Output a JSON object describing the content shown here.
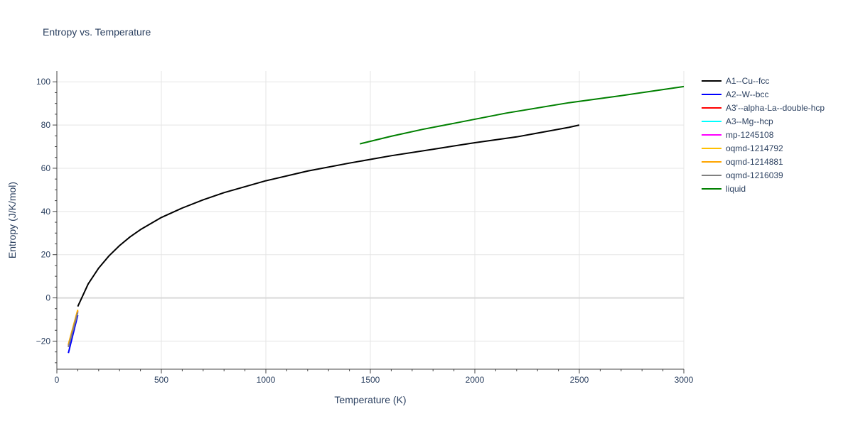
{
  "chart_data": {
    "type": "line",
    "title": "Entropy vs. Temperature",
    "xlabel": "Temperature (K)",
    "ylabel": "Entropy (J/K/mol)",
    "xlim": [
      0,
      3000
    ],
    "ylim": [
      -33,
      105
    ],
    "x_ticks": [
      0,
      500,
      1000,
      1500,
      2000,
      2500,
      3000
    ],
    "y_ticks": [
      -20,
      0,
      20,
      40,
      60,
      80,
      100
    ],
    "x_tick_labels": [
      "0",
      "500",
      "1000",
      "1500",
      "2000",
      "2500",
      "3000"
    ],
    "y_tick_labels": [
      "−20",
      "0",
      "20",
      "40",
      "60",
      "80",
      "100"
    ],
    "grid": true,
    "legend_position": "right",
    "series": [
      {
        "name": "A1--Cu--fcc",
        "color": "#000000",
        "x": [
          100,
          150,
          200,
          250,
          300,
          350,
          400,
          500,
          600,
          700,
          800,
          1000,
          1200,
          1400,
          1600,
          1800,
          2000,
          2200,
          2450,
          2500
        ],
        "y": [
          -4,
          6.5,
          13.8,
          19.5,
          24.2,
          28.2,
          31.6,
          37.2,
          41.6,
          45.4,
          48.7,
          54.2,
          58.7,
          62.4,
          65.8,
          68.8,
          71.8,
          74.5,
          78.9,
          80
        ]
      },
      {
        "name": "A2--W--bcc",
        "color": "#0000ff",
        "x": [
          55,
          100
        ],
        "y": [
          -25.5,
          -8
        ]
      },
      {
        "name": "A3'--alpha-La--double-hcp",
        "color": "#ff0000",
        "x": [
          55,
          100
        ],
        "y": [
          -22,
          -6
        ]
      },
      {
        "name": "A3--Mg--hcp",
        "color": "#00ffff",
        "x": [
          55,
          100
        ],
        "y": [
          -22.3,
          -6.2
        ]
      },
      {
        "name": "mp-1245108",
        "color": "#ff00ff",
        "x": [
          55,
          100
        ],
        "y": [
          -22.5,
          -6.5
        ]
      },
      {
        "name": "oqmd-1214792",
        "color": "#ffc000",
        "x": [
          55,
          100
        ],
        "y": [
          -21.5,
          -5.5
        ]
      },
      {
        "name": "oqmd-1214881",
        "color": "#ffa500",
        "x": [
          55,
          100
        ],
        "y": [
          -21.8,
          -5.8
        ]
      },
      {
        "name": "oqmd-1216039",
        "color": "#808080",
        "x": [
          55,
          100
        ],
        "y": [
          -22.8,
          -6.8
        ]
      },
      {
        "name": "liquid",
        "color": "#008000",
        "x": [
          1450,
          1600,
          1750,
          1900,
          2150,
          2450,
          2700,
          3000
        ],
        "y": [
          71.3,
          74.8,
          78,
          80.8,
          85.5,
          90.3,
          93.6,
          97.8
        ]
      }
    ]
  }
}
